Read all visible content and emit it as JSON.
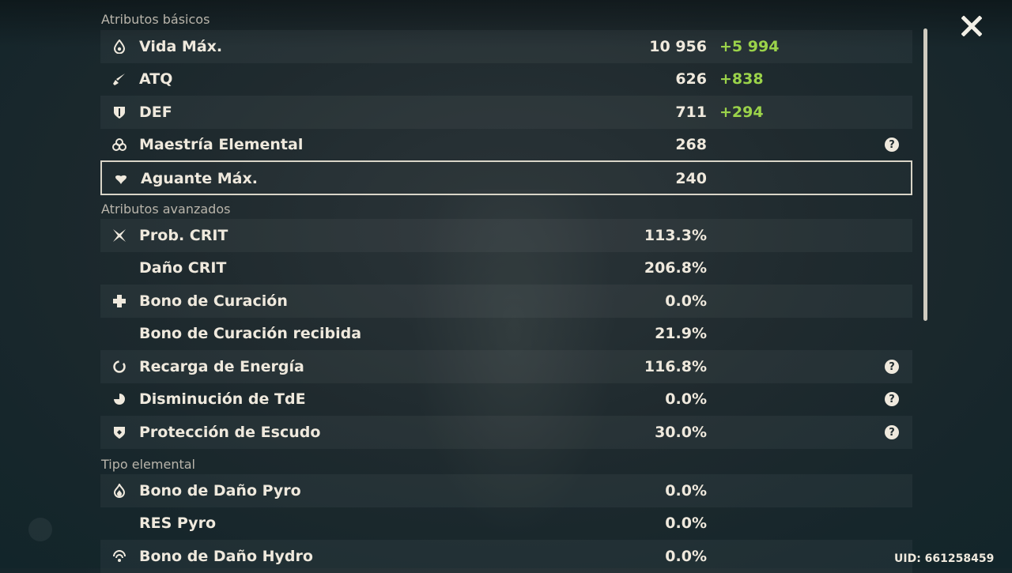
{
  "sections": {
    "basic": "Atributos básicos",
    "advanced": "Atributos avanzados",
    "elemental": "Tipo elemental"
  },
  "basic_rows": [
    {
      "icon": "hp-drop-icon",
      "label": "Vida Máx.",
      "value": "10 956",
      "bonus": "+5 994"
    },
    {
      "icon": "sword-icon",
      "label": "ATQ",
      "value": "626",
      "bonus": "+838"
    },
    {
      "icon": "shield-icon",
      "label": "DEF",
      "value": "711",
      "bonus": "+294"
    },
    {
      "icon": "elemental-mastery-icon",
      "label": "Maestría Elemental",
      "value": "268",
      "help": "?"
    },
    {
      "icon": "stamina-icon",
      "label": "Aguante Máx.",
      "value": "240"
    }
  ],
  "advanced_rows": [
    {
      "icon": "crit-rate-icon",
      "label": "Prob. CRIT",
      "value": "113.3%"
    },
    {
      "label": "Daño CRIT",
      "value": "206.8%"
    },
    {
      "icon": "healing-cross-icon",
      "label": "Bono de Curación",
      "value": "0.0%"
    },
    {
      "label": "Bono de Curación recibida",
      "value": "21.9%"
    },
    {
      "icon": "energy-recharge-icon",
      "label": "Recarga de Energía",
      "value": "116.8%",
      "help": "?"
    },
    {
      "icon": "cooldown-reduction-icon",
      "label": "Disminución de TdE",
      "value": "0.0%",
      "help": "?"
    },
    {
      "icon": "shield-strength-icon",
      "label": "Protección de Escudo",
      "value": "30.0%",
      "help": "?"
    }
  ],
  "elemental_rows": [
    {
      "icon": "pyro-icon",
      "label": "Bono de Daño Pyro",
      "value": "0.0%"
    },
    {
      "label": "RES Pyro",
      "value": "0.0%"
    },
    {
      "icon": "hydro-icon",
      "label": "Bono de Daño Hydro",
      "value": "0.0%"
    }
  ],
  "uid": "UID: 661258459",
  "colors": {
    "bonus": "#9bd34a",
    "text": "#efe9dd",
    "section": "#b9b5ab"
  }
}
